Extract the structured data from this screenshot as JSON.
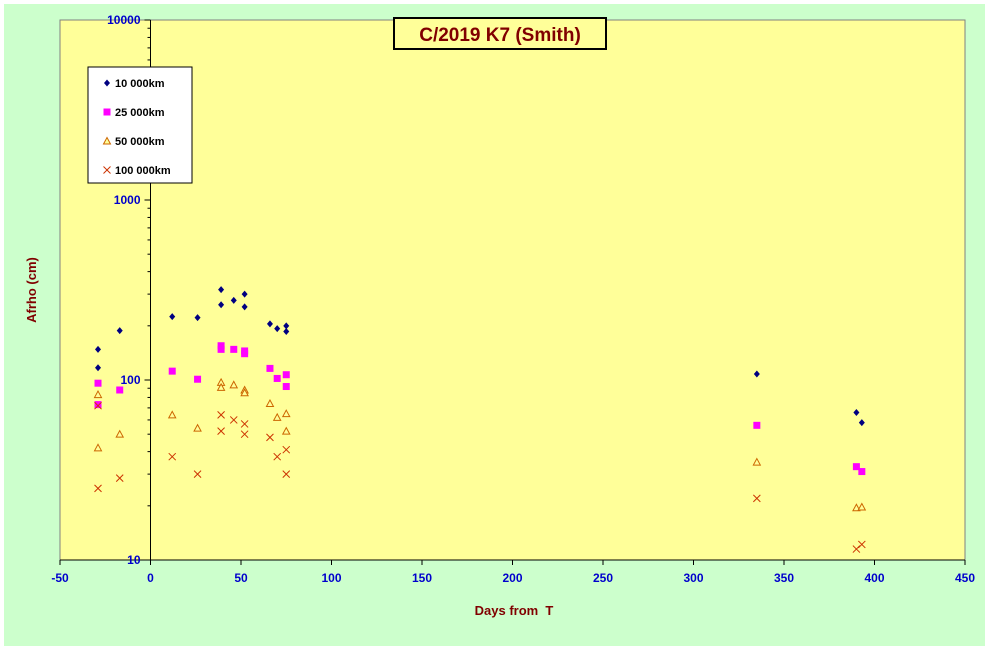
{
  "chart_data": {
    "type": "scatter",
    "title": "C/2019 K7 (Smith)",
    "xlabel": "Days from  T",
    "ylabel": "Afrho (cm)",
    "xlim": [
      -50,
      450
    ],
    "ylim": [
      10,
      10000
    ],
    "yscale": "log",
    "grid": false,
    "legend_position": "top-left",
    "x_ticks": [
      "-50",
      "0",
      "50",
      "100",
      "150",
      "200",
      "250",
      "300",
      "350",
      "400",
      "450"
    ],
    "y_ticks": [
      "10",
      "100",
      "1000",
      "10000"
    ],
    "colors": {
      "frame_bg": "#ccffcc",
      "plot_bg": "#ffff99",
      "tick_label": "#0000cc",
      "axis_title": "#800000",
      "title_text": "#800000"
    },
    "series": [
      {
        "name": "10 000km",
        "marker": "diamond",
        "color": "#000080",
        "points": [
          {
            "x": -29,
            "y": 148
          },
          {
            "x": -29,
            "y": 117
          },
          {
            "x": -17,
            "y": 188
          },
          {
            "x": 12,
            "y": 225
          },
          {
            "x": 26,
            "y": 222
          },
          {
            "x": 39,
            "y": 318
          },
          {
            "x": 39,
            "y": 262
          },
          {
            "x": 46,
            "y": 277
          },
          {
            "x": 52,
            "y": 300
          },
          {
            "x": 52,
            "y": 255
          },
          {
            "x": 66,
            "y": 205
          },
          {
            "x": 70,
            "y": 193
          },
          {
            "x": 75,
            "y": 200
          },
          {
            "x": 75,
            "y": 186
          },
          {
            "x": 335,
            "y": 108
          },
          {
            "x": 390,
            "y": 66
          },
          {
            "x": 393,
            "y": 58
          }
        ]
      },
      {
        "name": "25 000km",
        "marker": "square",
        "color": "#ff00ff",
        "points": [
          {
            "x": -29,
            "y": 96
          },
          {
            "x": -29,
            "y": 73
          },
          {
            "x": -17,
            "y": 88
          },
          {
            "x": 12,
            "y": 112
          },
          {
            "x": 26,
            "y": 101
          },
          {
            "x": 39,
            "y": 155
          },
          {
            "x": 39,
            "y": 148
          },
          {
            "x": 46,
            "y": 148
          },
          {
            "x": 52,
            "y": 145
          },
          {
            "x": 52,
            "y": 140
          },
          {
            "x": 66,
            "y": 116
          },
          {
            "x": 70,
            "y": 102
          },
          {
            "x": 75,
            "y": 107
          },
          {
            "x": 75,
            "y": 92
          },
          {
            "x": 335,
            "y": 56
          },
          {
            "x": 390,
            "y": 33
          },
          {
            "x": 393,
            "y": 31
          }
        ]
      },
      {
        "name": "50 000km",
        "marker": "triangle",
        "color": "#cc6600",
        "points": [
          {
            "x": -29,
            "y": 83
          },
          {
            "x": -29,
            "y": 42
          },
          {
            "x": -17,
            "y": 50
          },
          {
            "x": 12,
            "y": 64
          },
          {
            "x": 26,
            "y": 54
          },
          {
            "x": 39,
            "y": 97
          },
          {
            "x": 39,
            "y": 91
          },
          {
            "x": 46,
            "y": 94
          },
          {
            "x": 52,
            "y": 88
          },
          {
            "x": 52,
            "y": 85
          },
          {
            "x": 66,
            "y": 74
          },
          {
            "x": 70,
            "y": 62
          },
          {
            "x": 75,
            "y": 65
          },
          {
            "x": 75,
            "y": 52
          },
          {
            "x": 335,
            "y": 35
          },
          {
            "x": 390,
            "y": 19.5
          },
          {
            "x": 393,
            "y": 19.7
          }
        ]
      },
      {
        "name": "100 000km",
        "marker": "x",
        "color": "#cc3300",
        "points": [
          {
            "x": -29,
            "y": 72
          },
          {
            "x": -29,
            "y": 25
          },
          {
            "x": -17,
            "y": 28.5
          },
          {
            "x": 12,
            "y": 37.5
          },
          {
            "x": 26,
            "y": 30
          },
          {
            "x": 39,
            "y": 64
          },
          {
            "x": 39,
            "y": 52
          },
          {
            "x": 46,
            "y": 60
          },
          {
            "x": 52,
            "y": 57
          },
          {
            "x": 52,
            "y": 50
          },
          {
            "x": 66,
            "y": 48
          },
          {
            "x": 70,
            "y": 37.5
          },
          {
            "x": 75,
            "y": 41
          },
          {
            "x": 75,
            "y": 30
          },
          {
            "x": 335,
            "y": 22
          },
          {
            "x": 390,
            "y": 11.5
          },
          {
            "x": 393,
            "y": 12.2
          }
        ]
      }
    ]
  }
}
